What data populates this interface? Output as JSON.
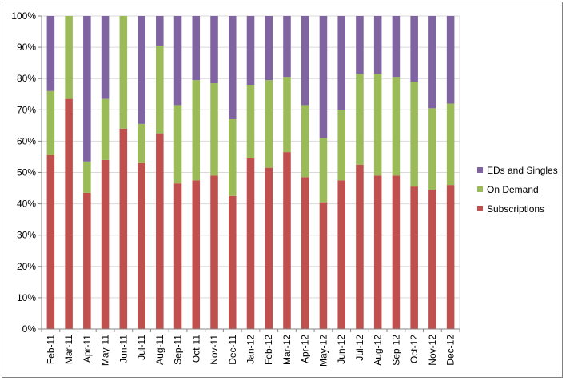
{
  "chart_data": {
    "type": "bar",
    "stacked": true,
    "percent_stacked": true,
    "categories": [
      "Feb-11",
      "Mar-11",
      "Apr-11",
      "May-11",
      "Jun-11",
      "Jul-11",
      "Aug-11",
      "Sep-11",
      "Oct-11",
      "Nov-11",
      "Dec-11",
      "Jan-12",
      "Feb-12",
      "Mar-12",
      "Apr-12",
      "May-12",
      "Jun-12",
      "Jul-12",
      "Aug-12",
      "Sep-12",
      "Oct-12",
      "Nov-12",
      "Dec-12"
    ],
    "series": [
      {
        "name": "Subscriptions",
        "color": "#C0504D",
        "values": [
          55.5,
          73.5,
          43.5,
          54,
          64,
          53,
          62.5,
          46.5,
          47.5,
          49,
          42.5,
          54.5,
          51.5,
          56.5,
          48.5,
          40.5,
          47.5,
          52.5,
          49,
          49,
          45.5,
          44.5,
          46
        ]
      },
      {
        "name": "On Demand",
        "color": "#9BBB59",
        "values": [
          20.5,
          26.5,
          10,
          19.5,
          36,
          12.5,
          28,
          25,
          32,
          29.5,
          24.5,
          23.5,
          28,
          24,
          23,
          20.5,
          22.5,
          29,
          32.5,
          31.5,
          33.5,
          26,
          26
        ]
      },
      {
        "name": "EDs and Singles",
        "color": "#8064A2",
        "values": [
          24,
          0,
          46.5,
          26.5,
          0,
          34.5,
          9.5,
          28.5,
          20.5,
          21.5,
          33,
          22,
          20.5,
          19.5,
          28.5,
          39,
          30,
          18.5,
          18.5,
          19.5,
          21,
          29.5,
          28
        ]
      }
    ],
    "yticks": [
      "0%",
      "10%",
      "20%",
      "30%",
      "40%",
      "50%",
      "60%",
      "70%",
      "80%",
      "90%",
      "100%"
    ],
    "ylim": [
      0,
      100
    ],
    "grid": true,
    "legend_position": "right",
    "legend_order": [
      "EDs and Singles",
      "On Demand",
      "Subscriptions"
    ]
  }
}
